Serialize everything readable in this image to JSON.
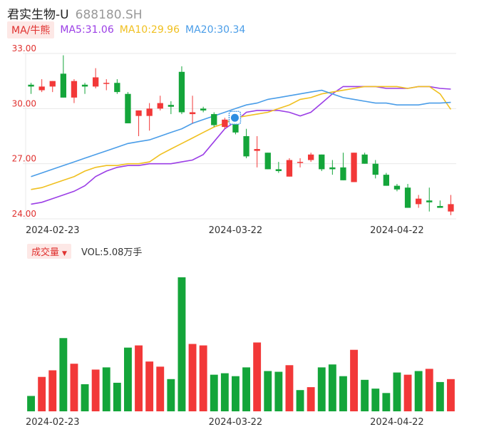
{
  "stock": {
    "name": "君实生物-U",
    "code": "688180.SH"
  },
  "ma_selector": "MA/牛熊",
  "ma_legend": [
    {
      "label": "MA5:31.06",
      "color": "#9b3ee6"
    },
    {
      "label": "MA10:29.96",
      "color": "#f0c020"
    },
    {
      "label": "MA20:30.34",
      "color": "#4a9de8"
    }
  ],
  "volume_selector": "成交量",
  "volume_label": "VOL:5.08万手",
  "colors": {
    "up": "#f23838",
    "down": "#14a53a",
    "axis_red": "#e0312f",
    "grid": "#e8e8e8"
  },
  "marker_icon": "shield-icon",
  "chart_data": [
    {
      "type": "candlestick",
      "y_ticks": [
        "33.00",
        "30.00",
        "27.00",
        "24.00"
      ],
      "ylim": [
        24.0,
        33.0
      ],
      "x_tick_labels": [
        "2024-02-23",
        "2024-03-22",
        "2024-04-22"
      ],
      "x_tick_index": [
        2,
        19,
        34
      ],
      "candles": [
        {
          "o": 31.3,
          "h": 31.4,
          "l": 30.8,
          "c": 31.2
        },
        {
          "o": 31.0,
          "h": 31.6,
          "l": 30.9,
          "c": 31.2
        },
        {
          "o": 31.2,
          "h": 31.5,
          "l": 30.9,
          "c": 31.5
        },
        {
          "o": 31.9,
          "h": 32.9,
          "l": 30.6,
          "c": 30.6
        },
        {
          "o": 30.6,
          "h": 31.6,
          "l": 30.3,
          "c": 31.5
        },
        {
          "o": 31.3,
          "h": 31.4,
          "l": 30.8,
          "c": 31.2
        },
        {
          "o": 31.2,
          "h": 32.2,
          "l": 31.1,
          "c": 31.7
        },
        {
          "o": 31.4,
          "h": 31.6,
          "l": 31.0,
          "c": 31.4
        },
        {
          "o": 31.4,
          "h": 31.6,
          "l": 30.8,
          "c": 30.9
        },
        {
          "o": 30.8,
          "h": 30.9,
          "l": 29.2,
          "c": 29.2
        },
        {
          "o": 29.6,
          "h": 29.9,
          "l": 28.5,
          "c": 29.9
        },
        {
          "o": 29.6,
          "h": 30.3,
          "l": 28.8,
          "c": 30.0
        },
        {
          "o": 30.0,
          "h": 30.7,
          "l": 29.9,
          "c": 30.3
        },
        {
          "o": 30.2,
          "h": 30.4,
          "l": 29.7,
          "c": 30.1
        },
        {
          "o": 32.0,
          "h": 32.3,
          "l": 29.7,
          "c": 29.8
        },
        {
          "o": 29.7,
          "h": 30.7,
          "l": 29.2,
          "c": 29.8
        },
        {
          "o": 30.0,
          "h": 30.1,
          "l": 29.8,
          "c": 29.9
        },
        {
          "o": 29.7,
          "h": 29.8,
          "l": 29.0,
          "c": 29.1
        },
        {
          "o": 29.0,
          "h": 29.5,
          "l": 28.9,
          "c": 29.4
        },
        {
          "o": 29.4,
          "h": 29.5,
          "l": 28.6,
          "c": 28.7
        },
        {
          "o": 28.5,
          "h": 28.9,
          "l": 27.3,
          "c": 27.4
        },
        {
          "o": 27.7,
          "h": 28.5,
          "l": 26.8,
          "c": 27.8
        },
        {
          "o": 27.6,
          "h": 27.6,
          "l": 26.7,
          "c": 26.7
        },
        {
          "o": 26.7,
          "h": 27.1,
          "l": 26.5,
          "c": 26.6
        },
        {
          "o": 26.3,
          "h": 27.3,
          "l": 26.3,
          "c": 27.2
        },
        {
          "o": 27.1,
          "h": 27.3,
          "l": 26.8,
          "c": 27.1
        },
        {
          "o": 27.2,
          "h": 27.6,
          "l": 27.1,
          "c": 27.5
        },
        {
          "o": 27.5,
          "h": 27.5,
          "l": 26.6,
          "c": 26.7
        },
        {
          "o": 26.8,
          "h": 27.2,
          "l": 26.4,
          "c": 26.7
        },
        {
          "o": 26.8,
          "h": 27.6,
          "l": 26.1,
          "c": 26.1
        },
        {
          "o": 26.0,
          "h": 27.6,
          "l": 26.0,
          "c": 27.6
        },
        {
          "o": 27.5,
          "h": 27.6,
          "l": 27.0,
          "c": 27.0
        },
        {
          "o": 27.0,
          "h": 27.2,
          "l": 26.2,
          "c": 26.4
        },
        {
          "o": 26.4,
          "h": 26.5,
          "l": 25.8,
          "c": 25.8
        },
        {
          "o": 25.8,
          "h": 25.9,
          "l": 25.5,
          "c": 25.6
        },
        {
          "o": 25.7,
          "h": 25.9,
          "l": 24.6,
          "c": 24.6
        },
        {
          "o": 24.8,
          "h": 25.3,
          "l": 24.6,
          "c": 25.1
        },
        {
          "o": 25.0,
          "h": 25.7,
          "l": 24.4,
          "c": 24.9
        },
        {
          "o": 24.7,
          "h": 25.0,
          "l": 24.6,
          "c": 24.6
        },
        {
          "o": 24.4,
          "h": 25.3,
          "l": 24.2,
          "c": 24.8
        }
      ],
      "ma": [
        {
          "name": "MA5",
          "color": "#9b3ee6",
          "values": [
            24.8,
            24.9,
            25.1,
            25.3,
            25.5,
            25.8,
            26.3,
            26.6,
            26.8,
            26.9,
            26.9,
            27.0,
            27.0,
            27.0,
            27.1,
            27.2,
            27.5,
            28.2,
            28.9,
            29.3,
            29.8,
            29.9,
            29.9,
            29.9,
            29.8,
            29.6,
            29.8,
            30.3,
            30.8,
            31.2,
            31.2,
            31.2,
            31.2,
            31.1,
            31.1,
            31.1,
            31.2,
            31.2,
            31.1,
            31.06
          ]
        },
        {
          "name": "MA10",
          "color": "#f0c020",
          "values": [
            25.6,
            25.7,
            25.9,
            26.1,
            26.3,
            26.6,
            26.8,
            26.9,
            26.9,
            27.0,
            27.0,
            27.1,
            27.5,
            27.8,
            28.1,
            28.4,
            28.7,
            29.0,
            29.2,
            29.5,
            29.6,
            29.7,
            29.8,
            30.0,
            30.2,
            30.5,
            30.6,
            30.8,
            30.9,
            31.0,
            31.1,
            31.2,
            31.2,
            31.2,
            31.2,
            31.1,
            31.2,
            31.2,
            30.8,
            29.96
          ]
        },
        {
          "name": "MA20",
          "color": "#4a9de8",
          "values": [
            26.3,
            26.5,
            26.7,
            26.9,
            27.1,
            27.3,
            27.5,
            27.7,
            27.9,
            28.1,
            28.2,
            28.3,
            28.5,
            28.7,
            28.9,
            29.2,
            29.4,
            29.6,
            29.8,
            30.0,
            30.2,
            30.3,
            30.5,
            30.6,
            30.7,
            30.8,
            30.9,
            31.0,
            30.8,
            30.6,
            30.5,
            30.4,
            30.3,
            30.3,
            30.2,
            30.2,
            30.2,
            30.3,
            30.3,
            30.34
          ]
        }
      ]
    },
    {
      "type": "bar",
      "title": "成交量",
      "x_tick_labels": [
        "2024-02-23",
        "2024-03-22",
        "2024-04-22"
      ],
      "x_tick_index": [
        2,
        19,
        34
      ],
      "values": [
        0.21,
        0.47,
        0.56,
        1.0,
        0.65,
        0.37,
        0.57,
        0.6,
        0.39,
        0.87,
        0.9,
        0.68,
        0.61,
        0.44,
        1.83,
        0.92,
        0.9,
        0.5,
        0.52,
        0.48,
        0.6,
        0.94,
        0.55,
        0.54,
        0.63,
        0.29,
        0.33,
        0.6,
        0.64,
        0.48,
        0.84,
        0.43,
        0.31,
        0.25,
        0.53,
        0.5,
        0.55,
        0.58,
        0.4,
        0.44
      ],
      "up": [
        false,
        true,
        true,
        false,
        true,
        false,
        true,
        false,
        false,
        false,
        true,
        true,
        true,
        false,
        false,
        true,
        true,
        false,
        false,
        false,
        false,
        true,
        false,
        false,
        true,
        false,
        true,
        false,
        false,
        false,
        true,
        false,
        false,
        false,
        false,
        true,
        false,
        true,
        false,
        true
      ]
    }
  ]
}
